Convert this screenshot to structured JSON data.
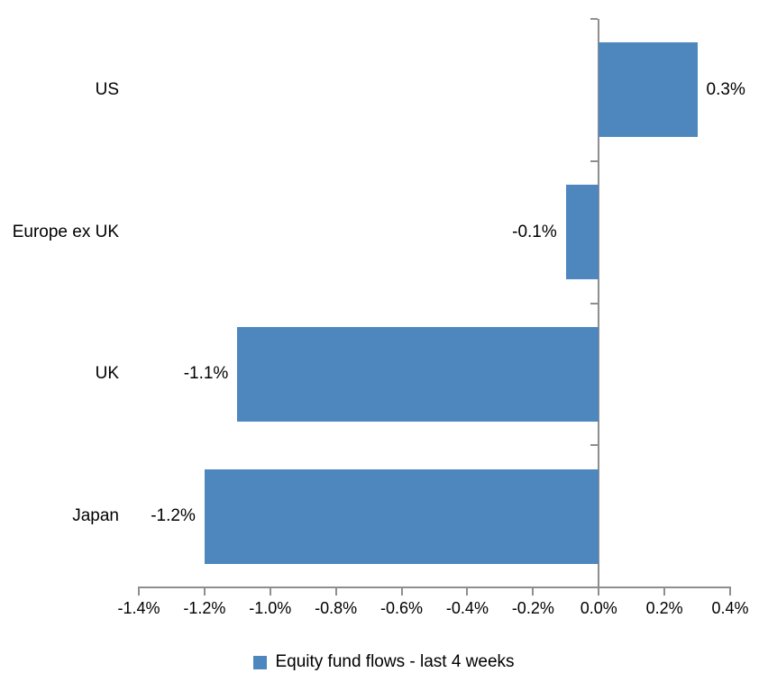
{
  "chart_data": {
    "type": "bar",
    "orientation": "horizontal",
    "title": "",
    "xlabel": "",
    "ylabel": "",
    "categories": [
      "US",
      "Europe ex UK",
      "UK",
      "Japan"
    ],
    "series": [
      {
        "name": "Equity fund flows - last 4 weeks",
        "values": [
          0.3,
          -0.1,
          -1.1,
          -1.2
        ],
        "data_labels": [
          "0.3%",
          "-0.1%",
          "-1.1%",
          "-1.2%"
        ]
      }
    ],
    "x_axis": {
      "min": -1.4,
      "max": 0.4,
      "step": 0.2,
      "tick_labels": [
        "-1.4%",
        "-1.2%",
        "-1.0%",
        "-0.8%",
        "-0.6%",
        "-0.4%",
        "-0.2%",
        "0.0%",
        "0.2%",
        "0.4%"
      ]
    },
    "legend": {
      "position": "bottom",
      "items": [
        {
          "label": "Equity fund flows - last 4 weeks",
          "color": "#4e87be"
        }
      ]
    },
    "grid": false,
    "colors": {
      "bar": "#4e87be",
      "axis": "#8e8e8e",
      "text": "#000000",
      "background": "#ffffff"
    }
  }
}
